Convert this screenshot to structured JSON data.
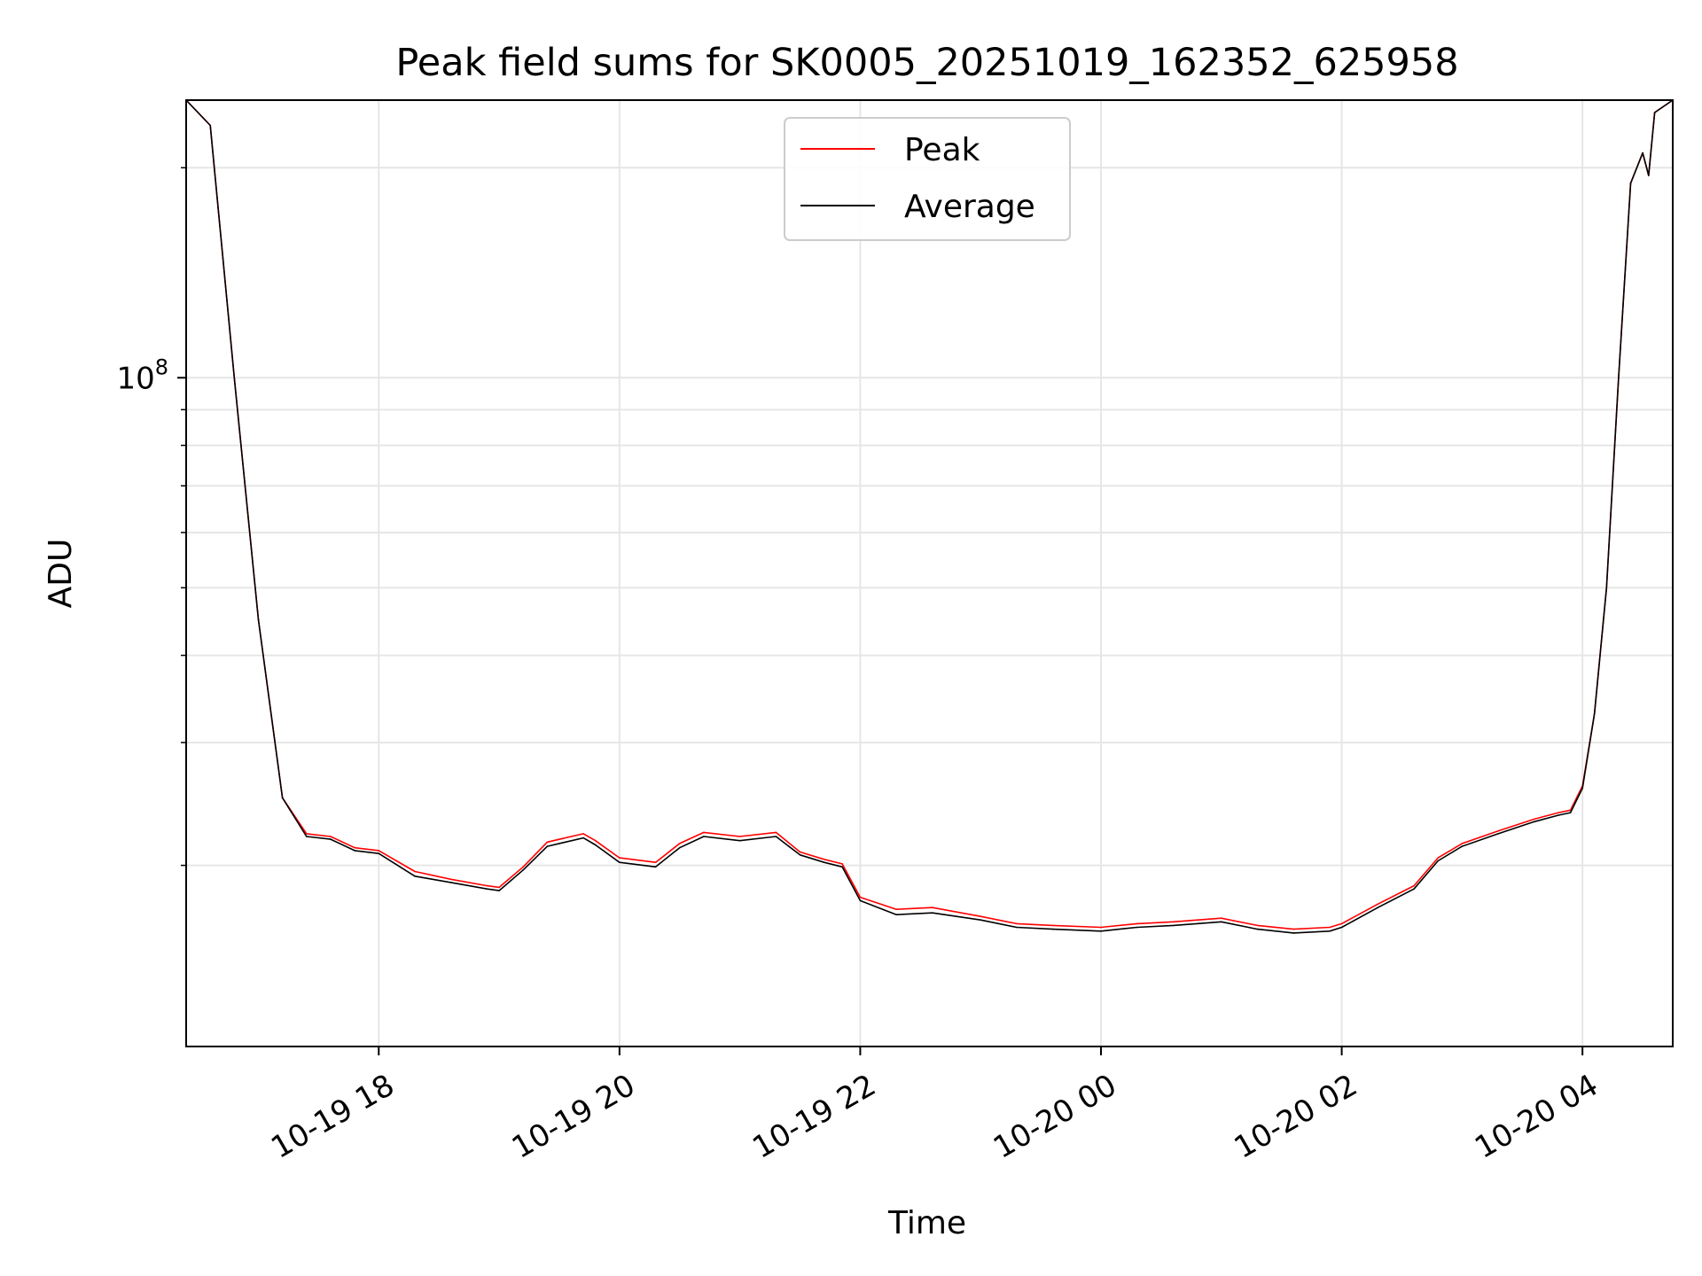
{
  "chart_data": {
    "type": "line",
    "title": "Peak field sums for SK0005_20251019_162352_625958",
    "xlabel": "Time",
    "ylabel": "ADU",
    "yscale": "log",
    "ylim": [
      11000000,
      250000000
    ],
    "xlim_hours": [
      16.4,
      28.75
    ],
    "x_unit": "hours since 2025-10-19 00:00",
    "x_ticks": [
      {
        "hour": 18,
        "label": "10-19 18"
      },
      {
        "hour": 20,
        "label": "10-19 20"
      },
      {
        "hour": 22,
        "label": "10-19 22"
      },
      {
        "hour": 24,
        "label": "10-20 00"
      },
      {
        "hour": 26,
        "label": "10-20 02"
      },
      {
        "hour": 28,
        "label": "10-20 04"
      }
    ],
    "y_major_tick": {
      "value": 100000000,
      "base": "10",
      "exponent": "8"
    },
    "y_minor_ticks": [
      20000000,
      30000000,
      40000000,
      50000000,
      60000000,
      70000000,
      80000000,
      90000000,
      200000000
    ],
    "grid": true,
    "legend": {
      "placement": "top-center",
      "entries": [
        "Peak",
        "Average"
      ]
    },
    "series": [
      {
        "name": "Peak",
        "color": "#ff0000",
        "x": [
          16.4,
          16.6,
          16.8,
          17.0,
          17.2,
          17.4,
          17.6,
          17.8,
          18.0,
          18.3,
          18.6,
          18.9,
          19.0,
          19.2,
          19.4,
          19.7,
          19.8,
          20.0,
          20.3,
          20.5,
          20.7,
          21.0,
          21.3,
          21.5,
          21.7,
          21.85,
          22.0,
          22.3,
          22.6,
          23.0,
          23.3,
          23.6,
          24.0,
          24.3,
          24.6,
          25.0,
          25.3,
          25.6,
          25.9,
          26.0,
          26.3,
          26.6,
          26.8,
          27.0,
          27.3,
          27.6,
          27.8,
          27.9,
          28.0,
          28.1,
          28.2,
          28.3,
          28.4,
          28.5,
          28.55,
          28.6,
          28.75
        ],
        "values": [
          250000000,
          230000000,
          100000000,
          45000000,
          25000000,
          22200000,
          22000000,
          21200000,
          21000000,
          19600000,
          19100000,
          18700000,
          18600000,
          19900000,
          21600000,
          22200000,
          21700000,
          20500000,
          20200000,
          21500000,
          22300000,
          22000000,
          22300000,
          20900000,
          20400000,
          20100000,
          18000000,
          17300000,
          17400000,
          16900000,
          16500000,
          16400000,
          16300000,
          16500000,
          16600000,
          16800000,
          16400000,
          16200000,
          16300000,
          16500000,
          17600000,
          18700000,
          20500000,
          21500000,
          22400000,
          23300000,
          23800000,
          24000000,
          26000000,
          33000000,
          50000000,
          100000000,
          190000000,
          210000000,
          195000000,
          240000000,
          250000000
        ]
      },
      {
        "name": "Average",
        "color": "#000000",
        "x": [
          16.4,
          16.6,
          16.8,
          17.0,
          17.2,
          17.4,
          17.6,
          17.8,
          18.0,
          18.3,
          18.6,
          18.9,
          19.0,
          19.2,
          19.4,
          19.7,
          19.8,
          20.0,
          20.3,
          20.5,
          20.7,
          21.0,
          21.3,
          21.5,
          21.7,
          21.85,
          22.0,
          22.3,
          22.6,
          23.0,
          23.3,
          23.6,
          24.0,
          24.3,
          24.6,
          25.0,
          25.3,
          25.6,
          25.9,
          26.0,
          26.3,
          26.6,
          26.8,
          27.0,
          27.3,
          27.6,
          27.8,
          27.9,
          28.0,
          28.1,
          28.2,
          28.3,
          28.4,
          28.5,
          28.55,
          28.6,
          28.75
        ],
        "values": [
          250000000,
          230000000,
          100000000,
          45000000,
          25000000,
          22000000,
          21800000,
          21000000,
          20800000,
          19300000,
          18900000,
          18500000,
          18400000,
          19700000,
          21300000,
          21900000,
          21400000,
          20200000,
          19900000,
          21200000,
          22000000,
          21700000,
          22000000,
          20700000,
          20200000,
          19900000,
          17800000,
          17000000,
          17100000,
          16700000,
          16300000,
          16200000,
          16100000,
          16300000,
          16400000,
          16600000,
          16200000,
          16000000,
          16100000,
          16300000,
          17400000,
          18500000,
          20300000,
          21300000,
          22200000,
          23100000,
          23600000,
          23800000,
          25800000,
          33000000,
          50000000,
          100000000,
          190000000,
          210000000,
          195000000,
          240000000,
          250000000
        ]
      }
    ]
  }
}
